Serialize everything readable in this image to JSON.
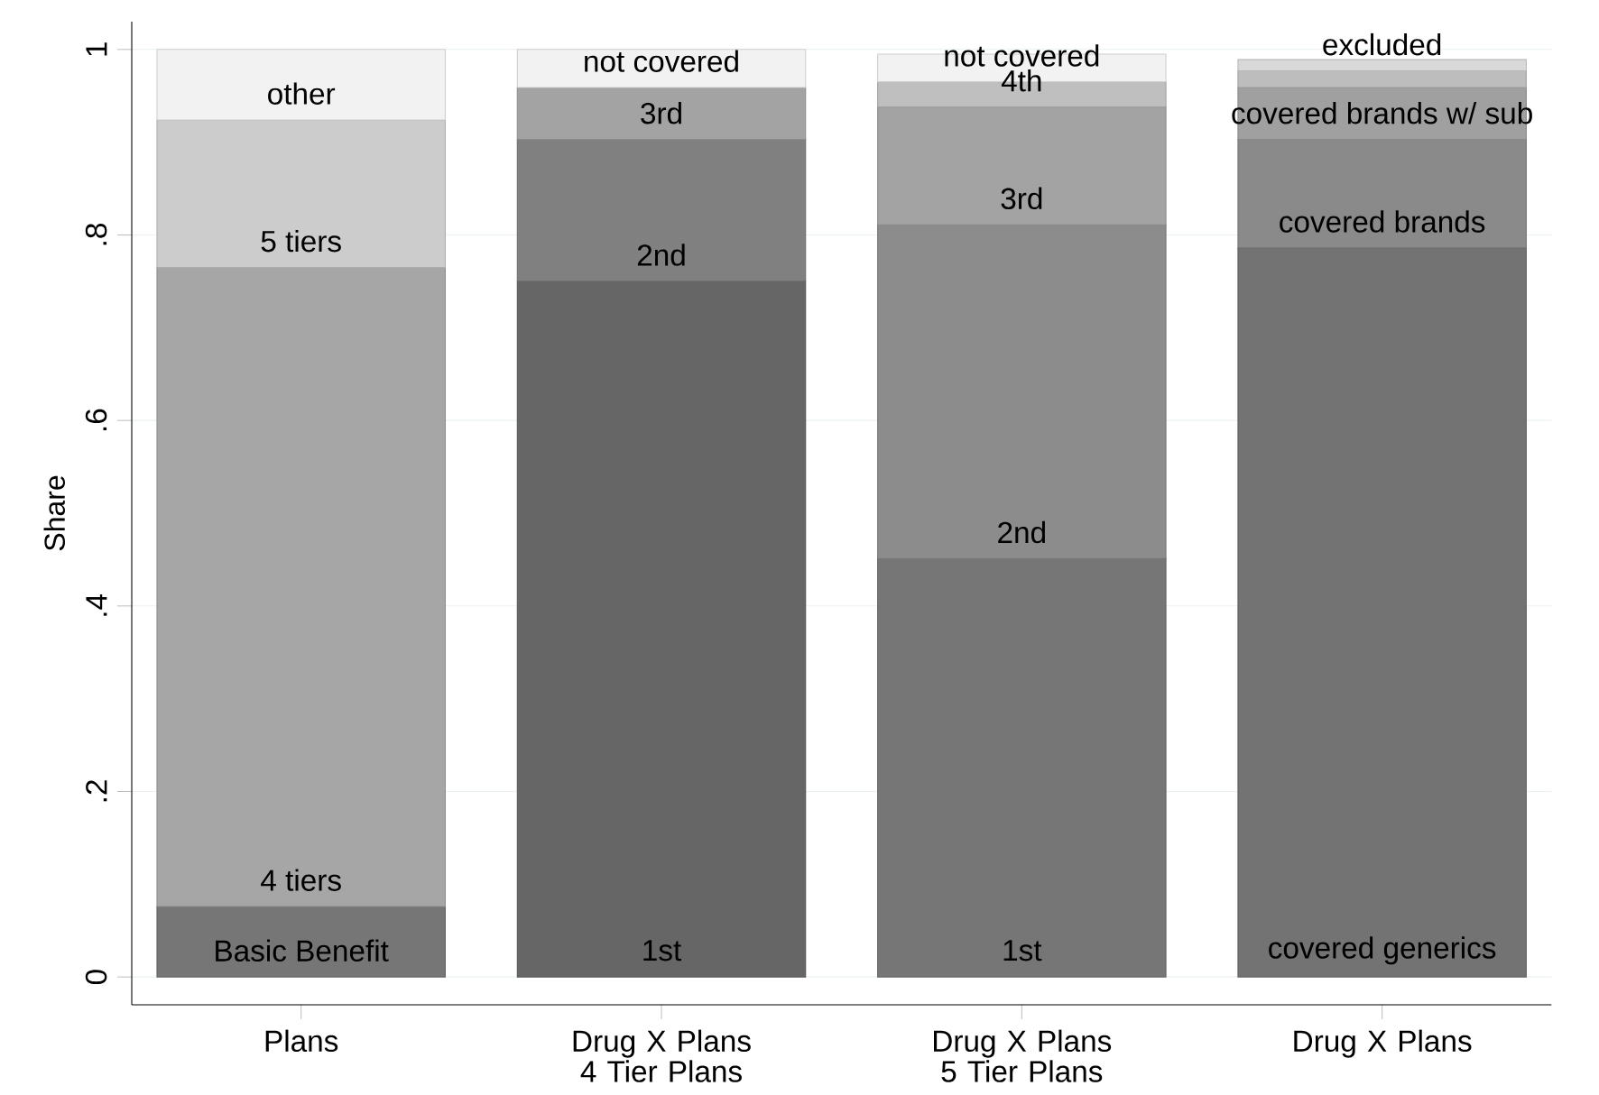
{
  "chart_data": {
    "type": "bar",
    "stacked": true,
    "ylabel": "Share",
    "categories": [
      "Plans",
      "Drug X Plans 4 Tier Plans",
      "Drug X Plans 5 Tier Plans",
      "Drug X Plans"
    ],
    "series": [
      {
        "values": [
          0.076,
          0.75,
          0.451,
          0.786
        ],
        "colors": [
          "#767676",
          "#666666",
          "#767676",
          "#737373"
        ]
      },
      {
        "values": [
          0.689,
          0.153,
          0.36,
          0.117
        ],
        "colors": [
          "#a6a6a6",
          "#808080",
          "#8c8c8c",
          "#8a8a8a"
        ]
      },
      {
        "values": [
          0.159,
          0.056,
          0.127,
          0.056
        ],
        "colors": [
          "#cccccc",
          "#a3a3a3",
          "#a3a3a3",
          "#a0a0a0"
        ]
      },
      {
        "values": [
          0.076,
          0.041,
          0.027,
          0.018
        ],
        "colors": [
          "#f2f2f2",
          "#f2f2f2",
          "#bfbfbf",
          "#bdbdbd"
        ]
      },
      {
        "values": [
          null,
          null,
          0.03,
          0.012
        ],
        "colors": [
          null,
          null,
          "#f2f2f2",
          "#d9d9d9"
        ]
      }
    ],
    "ylim": [
      -0.03,
      1.03
    ],
    "yticks": [
      {
        "value": 0,
        "label": "0"
      },
      {
        "value": 0.2,
        "label": ".2"
      },
      {
        "value": 0.4,
        "label": ".4"
      },
      {
        "value": 0.6,
        "label": ".6"
      },
      {
        "value": 0.8,
        "label": ".8"
      },
      {
        "value": 1,
        "label": "1"
      }
    ],
    "grid": "y",
    "annotations": [
      {
        "text": "Basic Benefit",
        "x": "Plans",
        "y": 0
      },
      {
        "text": "4 tiers",
        "x": "Plans",
        "y": 0.076
      },
      {
        "text": "5 tiers",
        "x": "Plans",
        "y": 0.765
      },
      {
        "text": "other",
        "x": "Plans",
        "y": 0.924
      },
      {
        "text": "1st",
        "x": "Drug X Plans 4 Tier Plans",
        "y": 0
      },
      {
        "text": "2nd",
        "x": "Drug X Plans 4 Tier Plans",
        "y": 0.75
      },
      {
        "text": "3rd",
        "x": "Drug X Plans 4 Tier Plans",
        "y": 0.903
      },
      {
        "text": "not covered",
        "x": "Drug X Plans 4 Tier Plans",
        "y": 0.959
      },
      {
        "text": "1st",
        "x": "Drug X Plans 5 Tier Plans",
        "y": 0
      },
      {
        "text": "2nd",
        "x": "Drug X Plans 5 Tier Plans",
        "y": 0.451
      },
      {
        "text": "3rd",
        "x": "Drug X Plans 5 Tier Plans",
        "y": 0.811
      },
      {
        "text": "4th",
        "x": "Drug X Plans 5 Tier Plans",
        "y": 0.938
      },
      {
        "text": "not covered",
        "x": "Drug X Plans 5 Tier Plans",
        "y": 0.965
      },
      {
        "text": "covered generics",
        "x": "Drug X Plans",
        "y": 0
      },
      {
        "text": "covered brands",
        "x": "Drug X Plans",
        "y": 0.786
      },
      {
        "text": "covered brands w/ sub",
        "x": "Drug X Plans",
        "y": 0.903
      },
      {
        "text": "excluded",
        "x": "Drug X Plans",
        "y": 0.977
      }
    ]
  }
}
